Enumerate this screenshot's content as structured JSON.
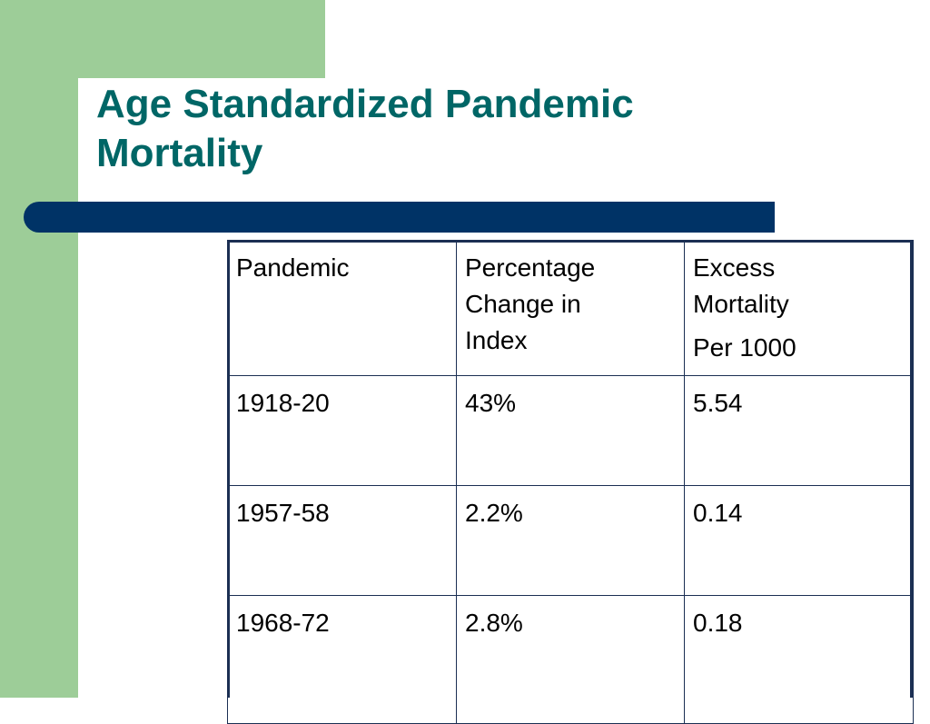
{
  "slide": {
    "title_lines": [
      "Age Standardized Pandemic",
      "Mortality"
    ],
    "accent_green": "#9dcd98",
    "accent_navy": "#003366",
    "title_color": "#006666"
  },
  "table": {
    "headers": {
      "pandemic": "Pandemic",
      "percentage_lines": [
        "Percentage",
        "Change in",
        "Index"
      ],
      "excess_lines": [
        "Excess",
        "Mortality"
      ],
      "excess_unit": "Per 1000"
    },
    "rows": [
      {
        "pandemic": "1918-20",
        "percentage": "43%",
        "excess": "5.54"
      },
      {
        "pandemic": "1957-58",
        "percentage": "2.2%",
        "excess": "0.14"
      },
      {
        "pandemic": "1968-72",
        "percentage": "2.8%",
        "excess": "0.18"
      }
    ]
  }
}
